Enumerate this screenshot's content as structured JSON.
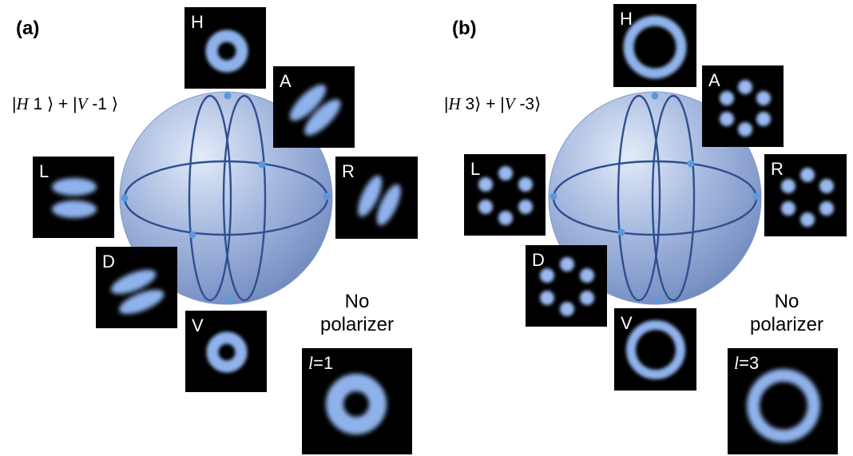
{
  "colors": {
    "sphere_fill": "#9aaed6",
    "sphere_lines": "#2e4f8f",
    "beam": "#8fb2ec",
    "tile_bg": "#000000"
  },
  "panel_a": {
    "label": "(a)",
    "ket1_name": "H",
    "ket1_val": "1",
    "ket2_name": "V",
    "ket2_val": "-1",
    "tiles": {
      "H": {
        "label": "H",
        "pattern": "donut"
      },
      "A": {
        "label": "A",
        "pattern": "two-lobes"
      },
      "L": {
        "label": "L",
        "pattern": "two-lobes"
      },
      "R": {
        "label": "R",
        "pattern": "two-lobes"
      },
      "D": {
        "label": "D",
        "pattern": "two-lobes"
      },
      "V": {
        "label": "V",
        "pattern": "donut"
      }
    },
    "no_polarizer": {
      "line1": "No",
      "line2": "polarizer",
      "l_symbol": "l",
      "l_value": "=1"
    }
  },
  "panel_b": {
    "label": "(b)",
    "ket1_name": "H",
    "ket1_val": "3",
    "ket2_name": "V",
    "ket2_val": "-3",
    "tiles": {
      "H": {
        "label": "H",
        "pattern": "ring"
      },
      "A": {
        "label": "A",
        "pattern": "six-petals"
      },
      "L": {
        "label": "L",
        "pattern": "six-petals"
      },
      "R": {
        "label": "R",
        "pattern": "six-petals"
      },
      "D": {
        "label": "D",
        "pattern": "six-petals"
      },
      "V": {
        "label": "V",
        "pattern": "ring"
      }
    },
    "no_polarizer": {
      "line1": "No",
      "line2": "polarizer",
      "l_symbol": "l",
      "l_value": "=3"
    }
  }
}
